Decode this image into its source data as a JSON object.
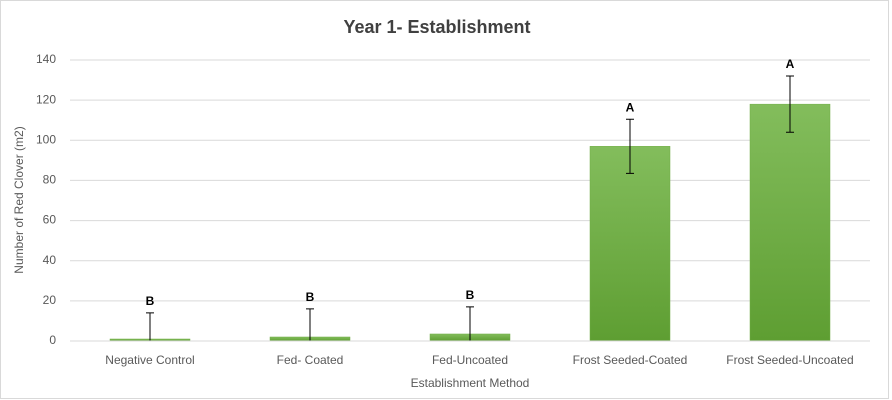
{
  "chart_data": {
    "type": "bar",
    "title": "Year 1- Establishment",
    "x_label": "Establishment Method",
    "y_label": "Number of Red Clover (m2)",
    "categories": [
      "Negative Control",
      "Fed- Coated",
      "Fed-Uncoated",
      "Frost Seeded-Coated",
      "Frost Seeded-Uncoated"
    ],
    "values": [
      1,
      2,
      3.5,
      97,
      118
    ],
    "errors": [
      13,
      14,
      13.5,
      13.5,
      14
    ],
    "annotations": [
      "B",
      "B",
      "B",
      "A",
      "A"
    ],
    "color": "#70ad47",
    "ylim": [
      0,
      140
    ],
    "yticks": [
      0,
      20,
      40,
      60,
      80,
      100,
      120,
      140
    ],
    "grid": true
  }
}
